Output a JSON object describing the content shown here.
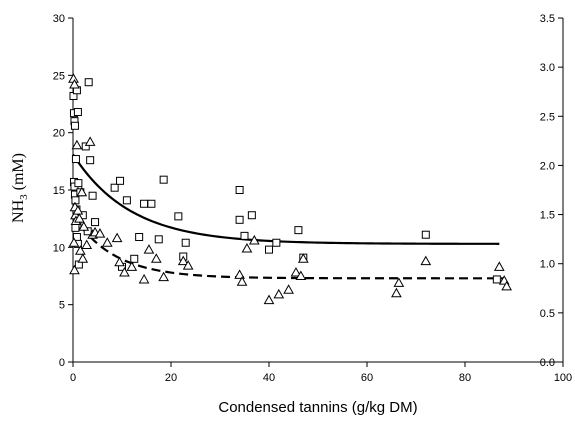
{
  "chart_data": {
    "type": "scatter",
    "title": "",
    "xlabel": "Condensed tannins (g/kg DM)",
    "ylabel": {
      "main": "NH",
      "sub": "3",
      "rest": " (mM)"
    },
    "xlim": [
      0,
      100
    ],
    "ylim_left": [
      0,
      30
    ],
    "ylim_right": [
      0,
      3.5
    ],
    "x_ticks": [
      "0",
      "20",
      "40",
      "60",
      "80",
      "100"
    ],
    "y_ticks_left": [
      "0",
      "5",
      "10",
      "15",
      "20",
      "25",
      "30"
    ],
    "y_ticks_right": [
      "0.0",
      "0.5",
      "1.0",
      "1.5",
      "2.0",
      "2.5",
      "3.0",
      "3.5"
    ],
    "grid": false,
    "legend": "none",
    "series": [
      {
        "marker": "square",
        "points": [
          [
            0.1,
            23.2
          ],
          [
            0.2,
            21.7
          ],
          [
            0.3,
            21.0
          ],
          [
            0.4,
            20.6
          ],
          [
            0.2,
            15.7
          ],
          [
            0.3,
            15.3
          ],
          [
            0.4,
            14.6
          ],
          [
            0.5,
            14.1
          ],
          [
            0.6,
            17.7
          ],
          [
            0.8,
            23.7
          ],
          [
            1.0,
            21.8
          ],
          [
            0.7,
            13.3
          ],
          [
            0.9,
            12.0
          ],
          [
            0.5,
            11.7
          ],
          [
            0.8,
            10.9
          ],
          [
            1.0,
            10.3
          ],
          [
            1.2,
            8.5
          ],
          [
            1.1,
            15.6
          ],
          [
            1.5,
            14.8
          ],
          [
            2.0,
            12.8
          ],
          [
            2.6,
            18.8
          ],
          [
            3.2,
            24.4
          ],
          [
            3.5,
            17.6
          ],
          [
            4.0,
            14.5
          ],
          [
            4.5,
            12.2
          ],
          [
            3.0,
            11.4
          ],
          [
            8.5,
            15.2
          ],
          [
            9.6,
            15.8
          ],
          [
            10.0,
            8.3
          ],
          [
            11.0,
            14.1
          ],
          [
            12.5,
            9.0
          ],
          [
            14.5,
            13.8
          ],
          [
            16.0,
            13.8
          ],
          [
            17.5,
            10.7
          ],
          [
            18.5,
            15.9
          ],
          [
            13.5,
            10.9
          ],
          [
            21.5,
            12.7
          ],
          [
            22.5,
            9.2
          ],
          [
            23.0,
            10.4
          ],
          [
            34.0,
            15.0
          ],
          [
            34.0,
            12.4
          ],
          [
            35.0,
            11.0
          ],
          [
            36.5,
            12.8
          ],
          [
            40.0,
            9.8
          ],
          [
            41.5,
            10.4
          ],
          [
            46.0,
            11.5
          ],
          [
            47.0,
            9.1
          ],
          [
            72.0,
            11.1
          ],
          [
            86.5,
            7.2
          ]
        ]
      },
      {
        "marker": "triangle",
        "points": [
          [
            0.1,
            24.7
          ],
          [
            0.3,
            24.2
          ],
          [
            0.4,
            13.5
          ],
          [
            0.5,
            12.8
          ],
          [
            0.6,
            12.3
          ],
          [
            0.2,
            10.4
          ],
          [
            0.3,
            8.0
          ],
          [
            0.8,
            18.9
          ],
          [
            1.0,
            13.2
          ],
          [
            1.3,
            12.5
          ],
          [
            1.8,
            14.8
          ],
          [
            2.2,
            11.8
          ],
          [
            1.5,
            9.7
          ],
          [
            2.0,
            9.0
          ],
          [
            2.8,
            10.2
          ],
          [
            3.5,
            19.2
          ],
          [
            4.0,
            11.1
          ],
          [
            4.5,
            11.3
          ],
          [
            5.5,
            11.2
          ],
          [
            7.0,
            10.4
          ],
          [
            9.0,
            10.8
          ],
          [
            9.5,
            8.7
          ],
          [
            10.5,
            7.8
          ],
          [
            12.0,
            8.3
          ],
          [
            14.5,
            7.2
          ],
          [
            15.5,
            9.8
          ],
          [
            17.0,
            9.0
          ],
          [
            18.5,
            7.4
          ],
          [
            22.5,
            8.8
          ],
          [
            23.5,
            8.4
          ],
          [
            34.0,
            7.6
          ],
          [
            34.5,
            7.0
          ],
          [
            35.5,
            9.9
          ],
          [
            37.0,
            10.6
          ],
          [
            40.0,
            5.4
          ],
          [
            42.0,
            5.9
          ],
          [
            44.0,
            6.3
          ],
          [
            45.5,
            7.8
          ],
          [
            46.5,
            7.5
          ],
          [
            47.0,
            9.0
          ],
          [
            66.0,
            6.0
          ],
          [
            66.5,
            6.9
          ],
          [
            72.0,
            8.8
          ],
          [
            87.0,
            8.3
          ],
          [
            88.0,
            7.1
          ],
          [
            88.5,
            6.6
          ]
        ]
      }
    ],
    "fitted_curves": [
      {
        "style": "solid",
        "a": 10.3,
        "b": 7.8,
        "k": 0.085,
        "x_range": [
          0,
          87
        ]
      },
      {
        "style": "dashed",
        "a": 7.3,
        "b": 5.5,
        "k": 0.12,
        "x_range": [
          0,
          88
        ]
      }
    ]
  }
}
